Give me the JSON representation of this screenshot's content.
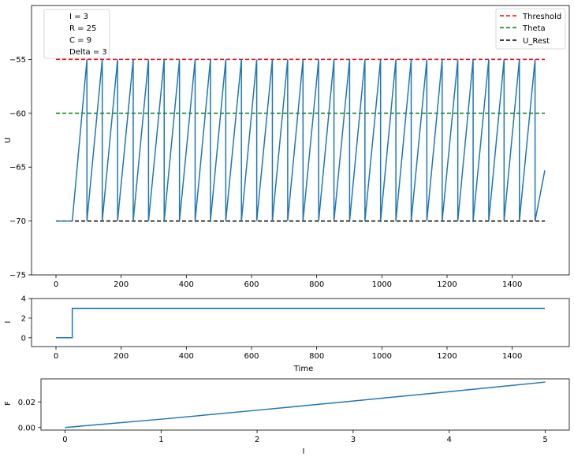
{
  "colors": {
    "series": "#1f77b4",
    "threshold": "#ff0000",
    "theta": "#008000",
    "u_rest": "#000000"
  },
  "chart_data": [
    {
      "type": "line",
      "ylabel": "U",
      "xlabel": "",
      "xlim": [
        -75,
        1575
      ],
      "ylim": [
        -75,
        -50
      ],
      "xticks": [
        0,
        200,
        400,
        600,
        800,
        1000,
        1200,
        1400
      ],
      "yticks": [
        -75,
        -70,
        -65,
        -60,
        -55
      ],
      "params_legend": [
        "I = 3",
        "R = 25",
        "C = 9",
        "Delta = 3"
      ],
      "lines_legend": [
        {
          "name": "Threshold",
          "color": "#ff0000"
        },
        {
          "name": "Theta",
          "color": "#008000"
        },
        {
          "name": "U_Rest",
          "color": "#000000"
        }
      ],
      "hlines": [
        {
          "name": "Threshold",
          "y": -55,
          "color": "#ff0000",
          "x": [
            0,
            1500
          ]
        },
        {
          "name": "Theta",
          "y": -60,
          "color": "#008000",
          "x": [
            0,
            1500
          ]
        },
        {
          "name": "U_Rest",
          "y": -70,
          "color": "#000000",
          "x": [
            0,
            1500
          ]
        }
      ],
      "series": [
        {
          "values": {
            "x": [
              0,
              50,
              95,
              95,
              142,
              142,
              189,
              189,
              237,
              237,
              284,
              284,
              332,
              332,
              379,
              379,
              427,
              427,
              474,
              474,
              521,
              521,
              569,
              569,
              616,
              616,
              664,
              664,
              711,
              711,
              758,
              758,
              806,
              806,
              853,
              853,
              901,
              901,
              948,
              948,
              996,
              996,
              1043,
              1043,
              1090,
              1090,
              1138,
              1138,
              1185,
              1185,
              1233,
              1233,
              1280,
              1280,
              1328,
              1328,
              1375,
              1375,
              1422,
              1422,
              1470,
              1470,
              1500
            ],
            "y": [
              -70,
              -70,
              -55,
              -70,
              -55,
              -70,
              -55,
              -70,
              -55,
              -70,
              -55,
              -70,
              -55,
              -70,
              -55,
              -70,
              -55,
              -70,
              -55,
              -70,
              -55,
              -70,
              -55,
              -70,
              -55,
              -70,
              -55,
              -70,
              -55,
              -70,
              -55,
              -70,
              -55,
              -70,
              -55,
              -70,
              -55,
              -70,
              -55,
              -70,
              -55,
              -70,
              -55,
              -70,
              -55,
              -70,
              -55,
              -70,
              -55,
              -70,
              -55,
              -70,
              -55,
              -70,
              -55,
              -70,
              -55,
              -70,
              -55,
              -70,
              -55,
              -70,
              -65.3
            ]
          }
        }
      ]
    },
    {
      "type": "line",
      "ylabel": "I",
      "xlabel": "Time",
      "xlim": [
        -75,
        1575
      ],
      "ylim": [
        -0.9,
        4
      ],
      "xticks": [
        0,
        200,
        400,
        600,
        800,
        1000,
        1200,
        1400
      ],
      "yticks": [
        0,
        2,
        4
      ],
      "series": [
        {
          "values": {
            "x": [
              0,
              50,
              50,
              1500
            ],
            "y": [
              0,
              0,
              3,
              3
            ]
          }
        }
      ]
    },
    {
      "type": "line",
      "ylabel": "F",
      "xlabel": "I",
      "xlim": [
        -0.25,
        5.25
      ],
      "ylim": [
        -0.002,
        0.038
      ],
      "xticks": [
        0,
        1,
        2,
        3,
        4,
        5
      ],
      "yticks": [
        0.0,
        0.02
      ],
      "ytick_labels": [
        "0.00",
        "0.02"
      ],
      "series": [
        {
          "values": {
            "x": [
              0,
              1,
              2,
              3,
              4,
              5
            ],
            "y": [
              0,
              0.0065,
              0.0135,
              0.0207,
              0.028,
              0.0355
            ]
          }
        }
      ]
    }
  ]
}
